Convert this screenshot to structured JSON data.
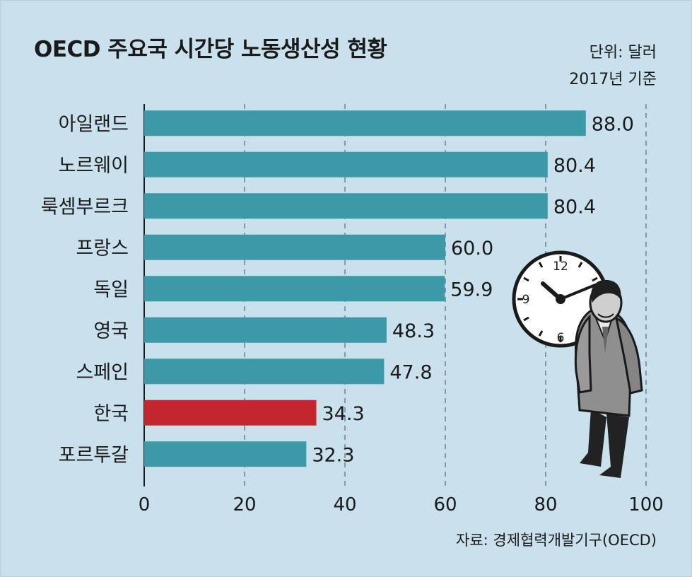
{
  "header": {
    "title": "OECD 주요국 시간당 노동생산성 현황",
    "unit": "단위: 달러",
    "basis": "2017년 기준"
  },
  "footer": {
    "source": "자료: 경제협력개발기구(OECD)"
  },
  "colors": {
    "background": "#c9e1ec",
    "bar": "#3c9aa8",
    "highlight": "#c4262e"
  },
  "chart_data": {
    "type": "bar",
    "orientation": "horizontal",
    "categories": [
      "아일랜드",
      "노르웨이",
      "룩셈부르크",
      "프랑스",
      "독일",
      "영국",
      "스페인",
      "한국",
      "포르투갈"
    ],
    "values": [
      88.0,
      80.4,
      80.4,
      60.0,
      59.9,
      48.3,
      47.8,
      34.3,
      32.3
    ],
    "value_labels": [
      "88.0",
      "80.4",
      "80.4",
      "60.0",
      "59.9",
      "48.3",
      "47.8",
      "34.3",
      "32.3"
    ],
    "highlight_category": "한국",
    "xlim": [
      0,
      100
    ],
    "xticks": [
      0,
      20,
      40,
      60,
      80,
      100
    ],
    "xtick_labels": [
      "0",
      "20",
      "40",
      "60",
      "80",
      "100"
    ],
    "grid": "vertical dashed"
  },
  "illustration": {
    "clock_numbers": [
      "12",
      "9",
      "6"
    ],
    "icon_name": "clock-and-businessman-icon"
  }
}
